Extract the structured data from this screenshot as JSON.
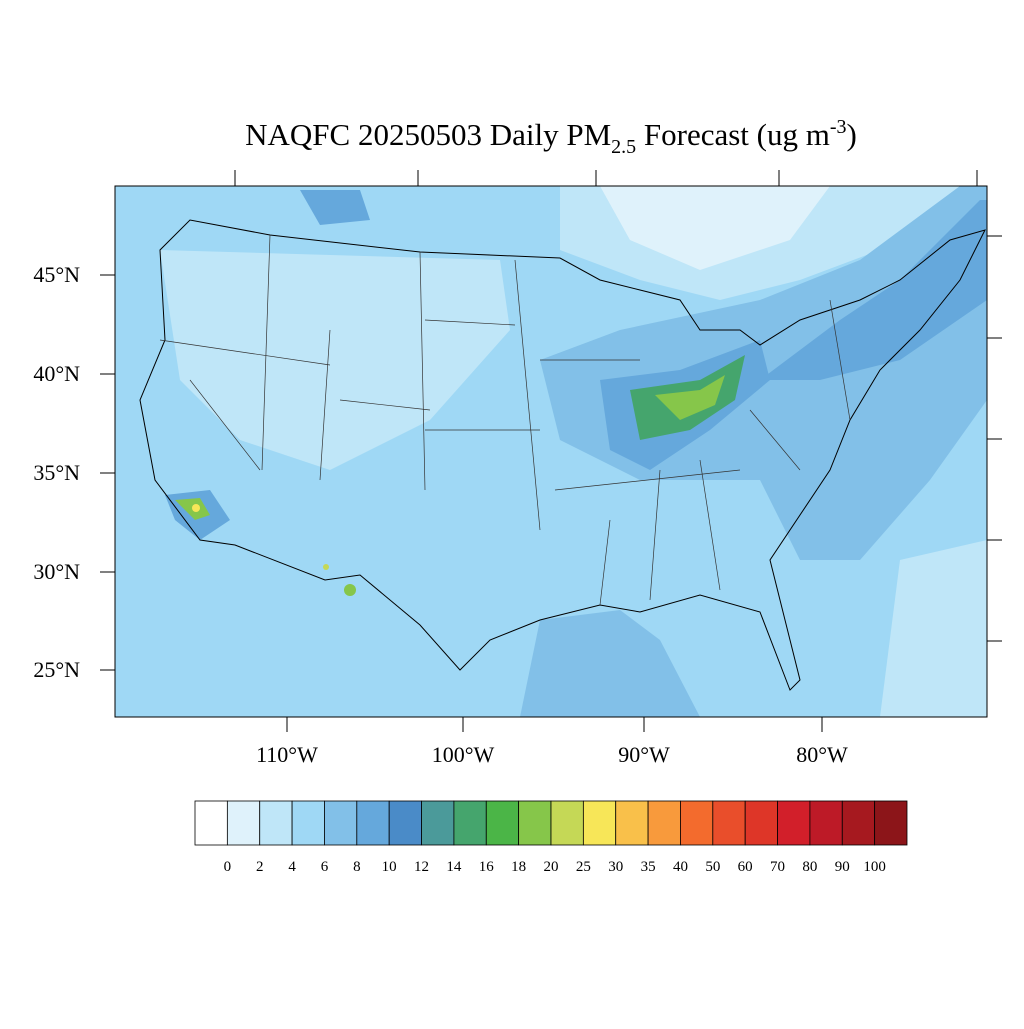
{
  "title": {
    "parts": [
      "NAQFC 20250503 Daily PM",
      "2.5",
      " Forecast (ug m",
      "-3",
      ")"
    ]
  },
  "latitude_labels": [
    "45°N",
    "40°N",
    "35°N",
    "30°N",
    "25°N"
  ],
  "longitude_labels": [
    "110°W",
    "100°W",
    "90°W",
    "80°W"
  ],
  "colorbar": {
    "labels": [
      "0",
      "2",
      "4",
      "6",
      "8",
      "10",
      "12",
      "14",
      "16",
      "18",
      "20",
      "25",
      "30",
      "35",
      "40",
      "50",
      "60",
      "70",
      "80",
      "90",
      "100"
    ],
    "colors": [
      "#ffffff",
      "#dff2fb",
      "#bfe6f8",
      "#9fd8f5",
      "#82c0e8",
      "#65a8dc",
      "#4a8bc8",
      "#4b9a9a",
      "#45a56d",
      "#4bb547",
      "#86c64a",
      "#c5d856",
      "#f7e658",
      "#f9c04a",
      "#f89a3c",
      "#f36b2d",
      "#e94e2b",
      "#de3628",
      "#d21f2a",
      "#bd1a27",
      "#a6191f",
      "#8c1519"
    ]
  }
}
